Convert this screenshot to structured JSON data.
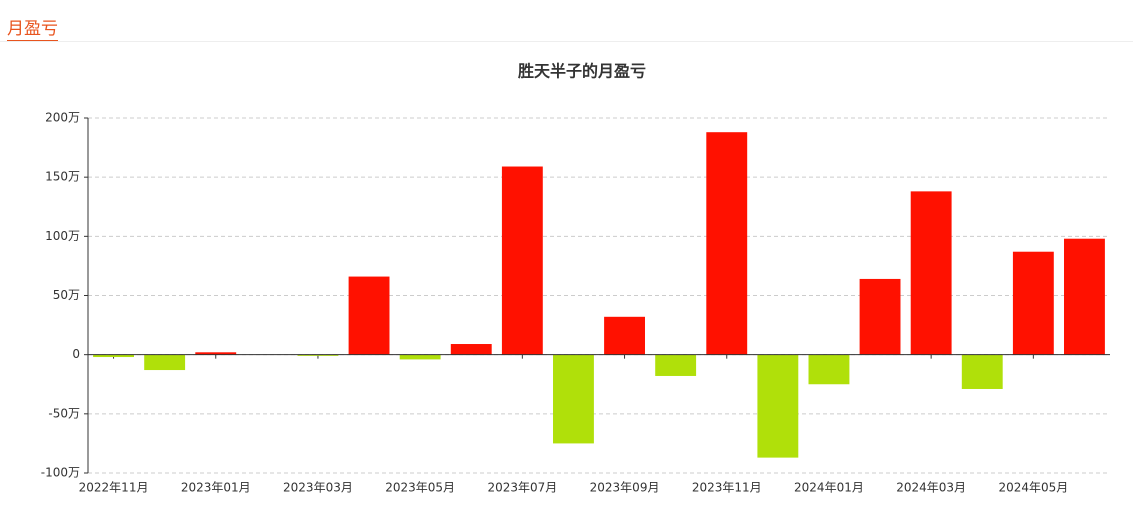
{
  "header": {
    "tab": "月盈亏"
  },
  "chart_data": {
    "type": "bar",
    "title": "胜天半子的月盈亏",
    "categories": [
      "2022年11月",
      null,
      "2023年01月",
      null,
      "2023年03月",
      null,
      "2023年05月",
      null,
      "2023年07月",
      null,
      "2023年09月",
      null,
      "2023年11月",
      null,
      "2024年01月",
      null,
      "2024年03月",
      null,
      "2024年05月",
      null
    ],
    "values": [
      -2,
      -13,
      2,
      0,
      -1,
      66,
      -4,
      9,
      159,
      -75,
      32,
      -18,
      188,
      -87,
      -25,
      64,
      138,
      -29,
      87,
      98
    ],
    "positive_color": "#ff1100",
    "negative_color": "#b0e00a",
    "ylim": [
      -100,
      200
    ],
    "yticks": [
      {
        "value": -100,
        "label": "-100万"
      },
      {
        "value": -50,
        "label": "-50万"
      },
      0,
      {
        "value": 50,
        "label": "50万"
      },
      {
        "value": 100,
        "label": "100万"
      },
      {
        "value": 150,
        "label": "150万"
      },
      {
        "value": 200,
        "label": "200万"
      }
    ],
    "grid": true
  }
}
